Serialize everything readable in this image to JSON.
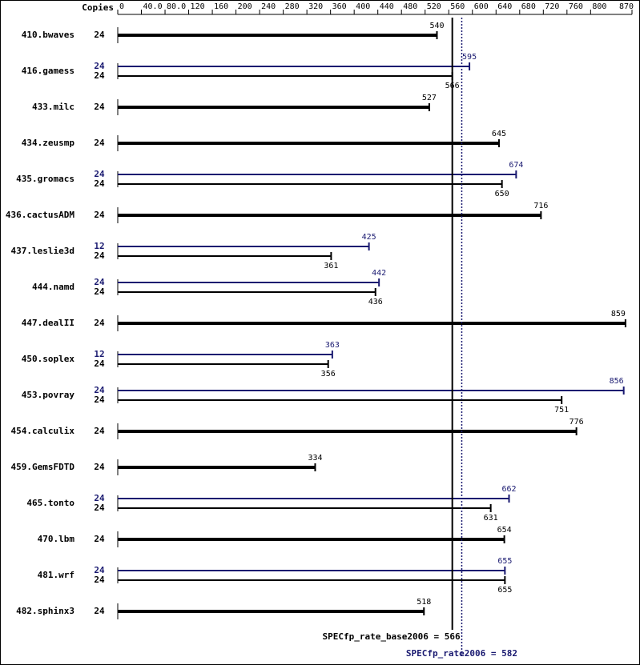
{
  "chart_data": {
    "type": "bar",
    "copies_label": "Copies",
    "categories": [
      "410.bwaves",
      "416.gamess",
      "433.milc",
      "434.zeusmp",
      "435.gromacs",
      "436.cactusADM",
      "437.leslie3d",
      "444.namd",
      "447.dealII",
      "450.soplex",
      "453.povray",
      "454.calculix",
      "459.GemsFDTD",
      "465.tonto",
      "470.lbm",
      "481.wrf",
      "482.sphinx3"
    ],
    "series": [
      {
        "color": "#000000",
        "copies": [
          24,
          24,
          24,
          24,
          24,
          24,
          24,
          24,
          24,
          24,
          24,
          24,
          24,
          24,
          24,
          24,
          24
        ],
        "values": [
          540,
          566,
          527,
          645,
          650,
          716,
          361,
          436,
          859,
          356,
          751,
          776,
          334,
          631,
          654,
          655,
          518
        ]
      },
      {
        "color": "#191970",
        "copies": [
          null,
          24,
          null,
          null,
          24,
          null,
          12,
          24,
          null,
          12,
          24,
          null,
          null,
          24,
          null,
          24,
          null
        ],
        "values": [
          null,
          595,
          null,
          null,
          674,
          null,
          425,
          442,
          null,
          363,
          856,
          null,
          null,
          662,
          null,
          655,
          null
        ]
      }
    ],
    "xlim": [
      0,
      870
    ],
    "xticks": [
      0,
      {
        "value": 40,
        "label": "40.0"
      },
      {
        "value": 80,
        "label": "80.0"
      },
      120,
      160,
      200,
      240,
      280,
      320,
      360,
      400,
      440,
      480,
      520,
      560,
      600,
      640,
      680,
      720,
      760,
      800,
      870
    ],
    "base_score": 566,
    "base_score_label": "SPECfp_rate_base2006 = 566",
    "peak_score": 582,
    "peak_score_label": "SPECfp_rate2006 = 582"
  }
}
